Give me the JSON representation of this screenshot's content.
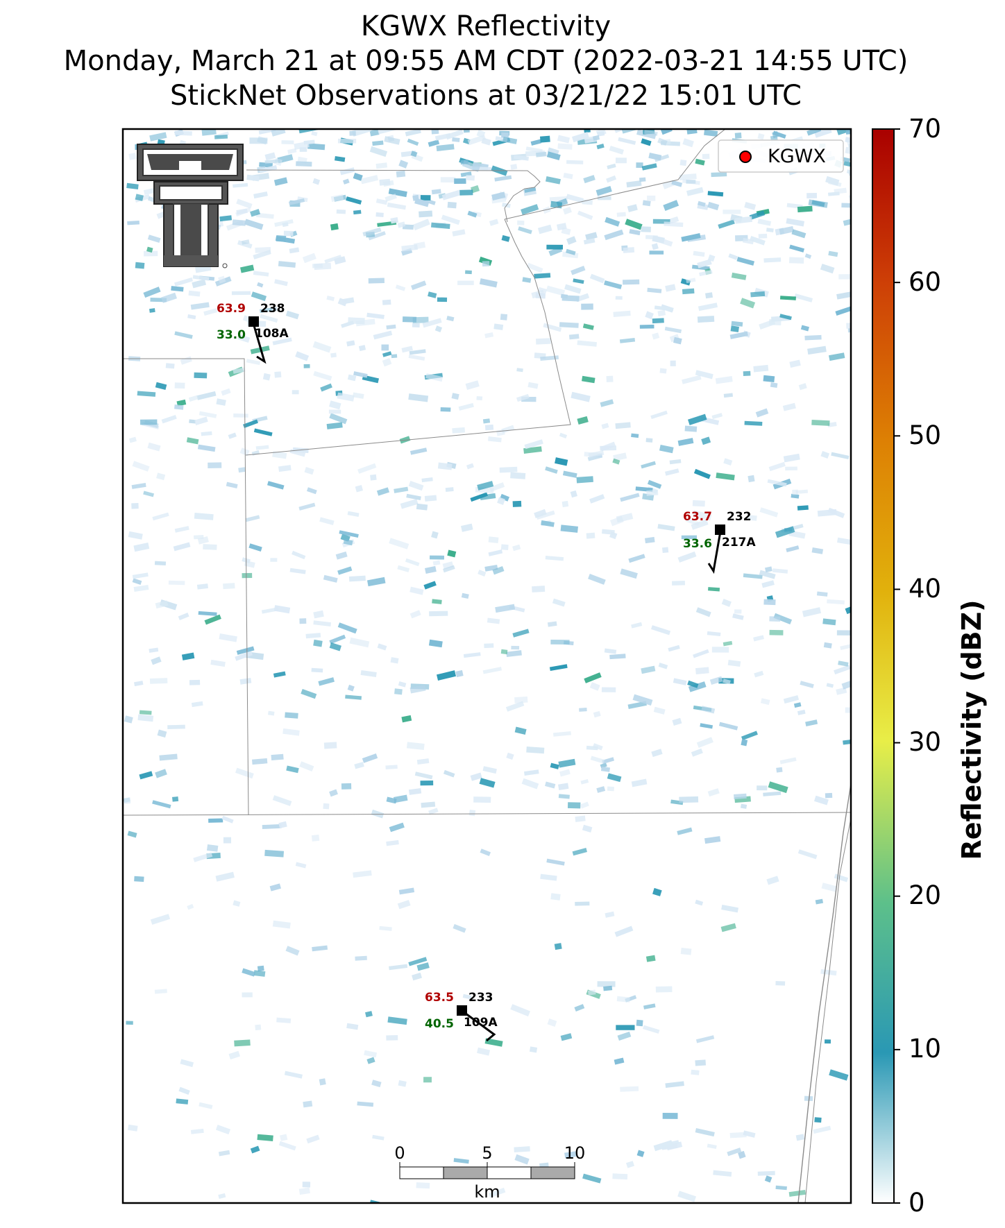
{
  "title": {
    "line1": "KGWX Reflectivity",
    "line2": "Monday, March 21 at 09:55 AM CDT (2022-03-21 14:55 UTC)",
    "line3": "StickNet Observations at 03/21/22 15:01 UTC"
  },
  "legend": {
    "label": "KGWX",
    "marker_color": "#ff0000"
  },
  "colorbar": {
    "label": "Reflectivity (dBZ)",
    "ticks": [
      "70",
      "60",
      "50",
      "40",
      "30",
      "20",
      "10",
      "0"
    ],
    "range": [
      0,
      70
    ]
  },
  "scalebar": {
    "ticks": [
      "0",
      "5",
      "10"
    ],
    "unit": "km"
  },
  "stations": [
    {
      "temp": "63.9",
      "dir": "238",
      "dewpoint": "33.0",
      "id": "108A"
    },
    {
      "temp": "63.7",
      "dir": "232",
      "dewpoint": "33.6",
      "id": "217A"
    },
    {
      "temp": "63.5",
      "dir": "233",
      "dewpoint": "40.5",
      "id": "109A"
    }
  ],
  "colors": {
    "temp": "#b00000",
    "dewpoint": "#006400",
    "reflectivity_low": "#dbeaf6",
    "reflectivity_mid": "#2a98b4",
    "reflectivity_high": "#3cae8c"
  },
  "logo": {
    "name": "texas-tech-double-t-logo"
  }
}
